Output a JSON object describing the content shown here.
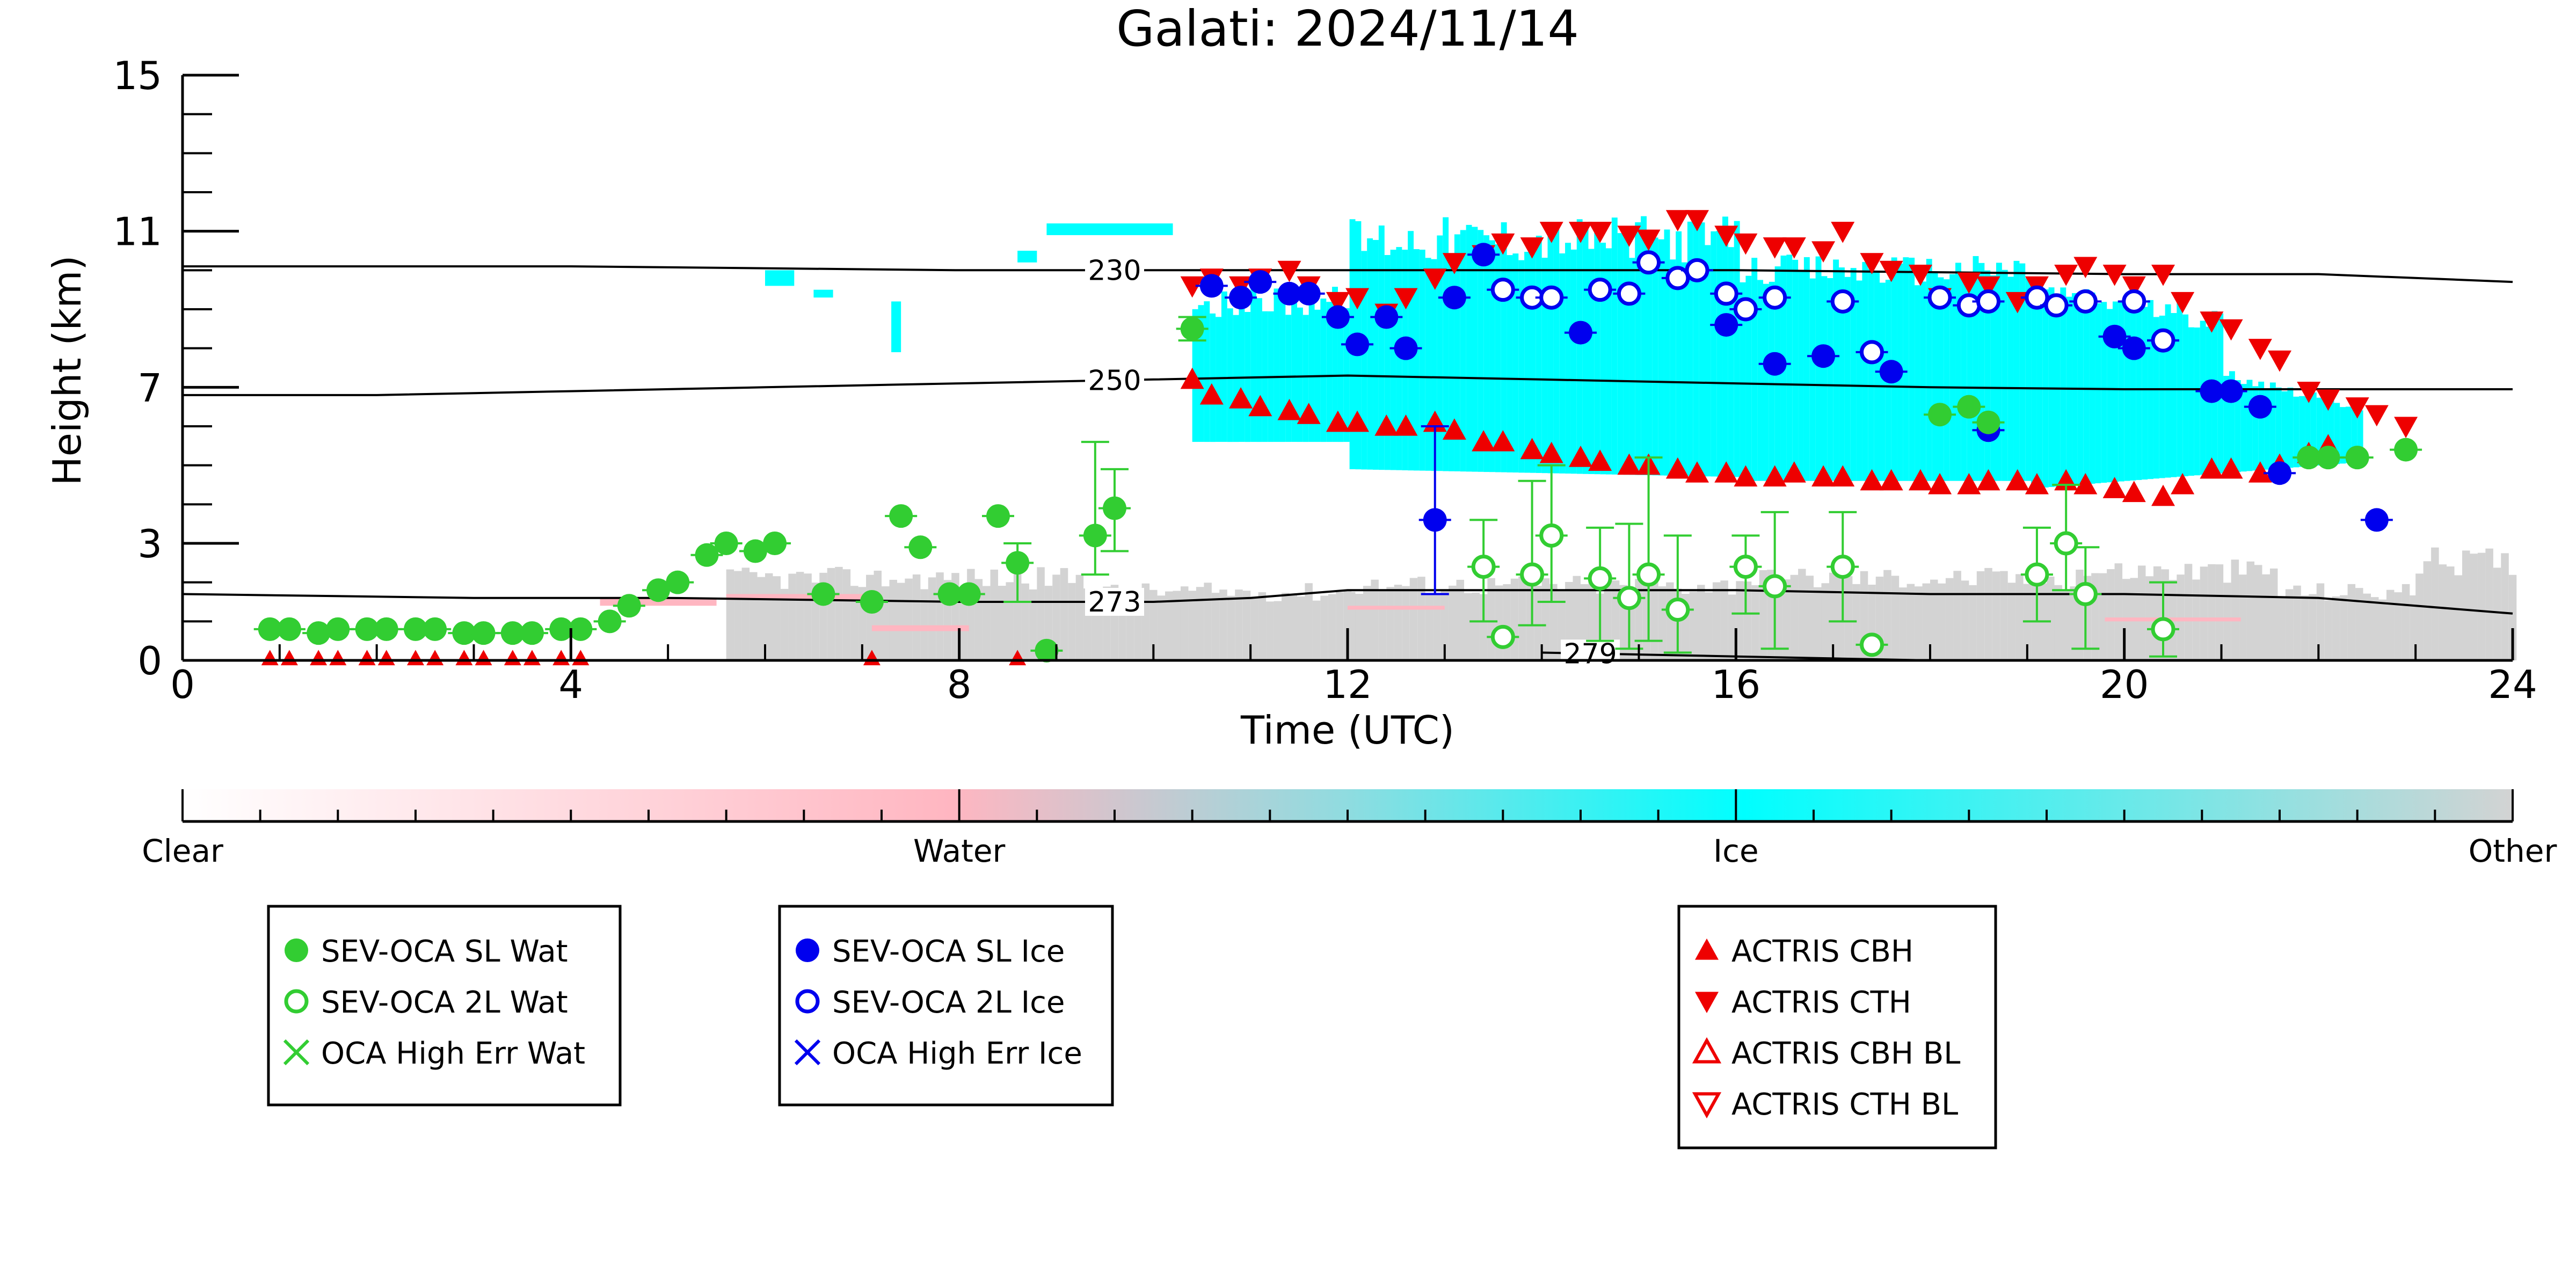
{
  "chart_data": {
    "type": "scatter",
    "title": "Galati: 2024/11/14",
    "xlabel": "Time (UTC)",
    "ylabel": "Height (km)",
    "xlim": [
      0,
      24
    ],
    "ylim": [
      0,
      15
    ],
    "x_ticks": [
      0,
      4,
      8,
      12,
      16,
      20,
      24
    ],
    "y_ticks": [
      0,
      3,
      7,
      11,
      15
    ],
    "grid": false,
    "contours": [
      {
        "label": "230",
        "label_x": 9.6,
        "points": [
          [
            0,
            10.1
          ],
          [
            4,
            10.1
          ],
          [
            8,
            10.0
          ],
          [
            12,
            10.0
          ],
          [
            16,
            10.0
          ],
          [
            20,
            9.9
          ],
          [
            22,
            9.9
          ],
          [
            24,
            9.7
          ]
        ]
      },
      {
        "label": "250",
        "label_x": 9.6,
        "points": [
          [
            0,
            6.8
          ],
          [
            2,
            6.8
          ],
          [
            4,
            6.9
          ],
          [
            6,
            7.0
          ],
          [
            8,
            7.1
          ],
          [
            10,
            7.2
          ],
          [
            12,
            7.3
          ],
          [
            14,
            7.2
          ],
          [
            16,
            7.1
          ],
          [
            18,
            7.0
          ],
          [
            20,
            6.95
          ],
          [
            24,
            6.95
          ]
        ]
      },
      {
        "label": "273",
        "label_x": 9.6,
        "points": [
          [
            0,
            1.7
          ],
          [
            3,
            1.6
          ],
          [
            5,
            1.6
          ],
          [
            8,
            1.5
          ],
          [
            10,
            1.5
          ],
          [
            11,
            1.6
          ],
          [
            12,
            1.8
          ],
          [
            14,
            1.8
          ],
          [
            16,
            1.8
          ],
          [
            18,
            1.7
          ],
          [
            20,
            1.7
          ],
          [
            22,
            1.6
          ],
          [
            24,
            1.2
          ]
        ]
      },
      {
        "label": "279",
        "label_x": 14.5,
        "points": [
          [
            14,
            0.2
          ],
          [
            15,
            0.15
          ],
          [
            16,
            0.1
          ],
          [
            17,
            0.05
          ],
          [
            18,
            0.0
          ]
        ]
      }
    ],
    "colorbar": {
      "labels": [
        "Clear",
        "Water",
        "Ice",
        "Other"
      ],
      "colors": [
        "#ffffff",
        "#ffb6c1",
        "#00ffff",
        "#d3d3d3"
      ]
    },
    "series": [
      {
        "name": "SEV-OCA SL Wat",
        "marker": "filled-circle",
        "color": "#32cd32",
        "points": [
          [
            0.9,
            0.8
          ],
          [
            1.1,
            0.8
          ],
          [
            1.4,
            0.7
          ],
          [
            1.6,
            0.8
          ],
          [
            1.9,
            0.8
          ],
          [
            2.1,
            0.8
          ],
          [
            2.4,
            0.8
          ],
          [
            2.6,
            0.8
          ],
          [
            2.9,
            0.7
          ],
          [
            3.1,
            0.7
          ],
          [
            3.4,
            0.7
          ],
          [
            3.6,
            0.7
          ],
          [
            3.9,
            0.8
          ],
          [
            4.1,
            0.8
          ],
          [
            4.4,
            1.0
          ],
          [
            4.6,
            1.4
          ],
          [
            4.9,
            1.8
          ],
          [
            5.1,
            2.0
          ],
          [
            5.4,
            2.7
          ],
          [
            5.6,
            3.0
          ],
          [
            5.9,
            2.8
          ],
          [
            6.1,
            3.0
          ],
          [
            6.6,
            1.7
          ],
          [
            7.1,
            1.5
          ],
          [
            7.4,
            3.7
          ],
          [
            7.6,
            2.9
          ],
          [
            7.9,
            1.7
          ],
          [
            8.1,
            1.7
          ],
          [
            8.4,
            3.7
          ],
          [
            8.6,
            2.5
          ],
          [
            8.9,
            0.25
          ],
          [
            9.4,
            3.2
          ],
          [
            9.6,
            3.9
          ],
          [
            10.4,
            8.5
          ],
          [
            18.1,
            6.3
          ],
          [
            18.4,
            6.5
          ],
          [
            18.6,
            6.1
          ],
          [
            21.9,
            5.2
          ],
          [
            22.1,
            5.2
          ],
          [
            22.4,
            5.2
          ],
          [
            22.9,
            5.4
          ]
        ],
        "errbars": [
          [
            8.6,
            1.5,
            3.0
          ],
          [
            9.4,
            2.2,
            5.6
          ],
          [
            9.6,
            2.8,
            4.9
          ],
          [
            10.4,
            8.2,
            8.8
          ]
        ]
      },
      {
        "name": "SEV-OCA 2L Wat",
        "marker": "open-circle",
        "color": "#32cd32",
        "points": [
          [
            13.4,
            2.4
          ],
          [
            13.6,
            0.6
          ],
          [
            13.9,
            2.2
          ],
          [
            14.1,
            3.2
          ],
          [
            14.6,
            2.1
          ],
          [
            14.9,
            1.6
          ],
          [
            15.1,
            2.2
          ],
          [
            15.4,
            1.3
          ],
          [
            16.1,
            2.4
          ],
          [
            16.4,
            1.9
          ],
          [
            17.1,
            2.4
          ],
          [
            17.4,
            0.4
          ],
          [
            19.1,
            2.2
          ],
          [
            19.4,
            3.0
          ],
          [
            19.6,
            1.7
          ],
          [
            20.4,
            0.8
          ]
        ],
        "errbars": [
          [
            13.4,
            1.0,
            3.6
          ],
          [
            13.9,
            0.9,
            4.6
          ],
          [
            14.1,
            1.5,
            5.0
          ],
          [
            14.6,
            0.5,
            3.4
          ],
          [
            14.9,
            0.3,
            3.5
          ],
          [
            15.1,
            0.5,
            5.2
          ],
          [
            15.4,
            0.2,
            3.2
          ],
          [
            16.1,
            1.2,
            3.2
          ],
          [
            16.4,
            0.3,
            3.8
          ],
          [
            17.1,
            1.0,
            3.8
          ],
          [
            19.1,
            1.0,
            3.4
          ],
          [
            19.4,
            1.8,
            4.5
          ],
          [
            19.6,
            0.3,
            2.9
          ],
          [
            20.4,
            0.1,
            2.0
          ]
        ]
      },
      {
        "name": "OCA High Err Wat",
        "marker": "x",
        "color": "#32cd32",
        "points": []
      },
      {
        "name": "SEV-OCA SL Ice",
        "marker": "filled-circle",
        "color": "#0000ee",
        "points": [
          [
            10.6,
            9.6
          ],
          [
            10.9,
            9.3
          ],
          [
            11.1,
            9.7
          ],
          [
            11.4,
            9.4
          ],
          [
            11.6,
            9.4
          ],
          [
            11.9,
            8.8
          ],
          [
            12.1,
            8.1
          ],
          [
            12.4,
            8.8
          ],
          [
            12.6,
            8.0
          ],
          [
            12.9,
            3.6
          ],
          [
            13.1,
            9.3
          ],
          [
            13.4,
            10.4
          ],
          [
            14.4,
            8.4
          ],
          [
            15.9,
            8.6
          ],
          [
            16.4,
            7.6
          ],
          [
            16.9,
            7.8
          ],
          [
            17.6,
            7.4
          ],
          [
            18.6,
            5.9
          ],
          [
            19.9,
            8.3
          ],
          [
            20.1,
            8.0
          ],
          [
            20.4,
            8.2
          ],
          [
            20.9,
            6.9
          ],
          [
            21.1,
            6.9
          ],
          [
            21.4,
            6.5
          ],
          [
            21.6,
            4.8
          ],
          [
            22.6,
            3.6
          ]
        ],
        "errbars": [
          [
            12.9,
            1.7,
            6.0
          ]
        ]
      },
      {
        "name": "SEV-OCA 2L Ice",
        "marker": "open-circle",
        "color": "#0000ee",
        "points": [
          [
            13.6,
            9.5
          ],
          [
            13.9,
            9.3
          ],
          [
            14.1,
            9.3
          ],
          [
            14.6,
            9.5
          ],
          [
            14.9,
            9.4
          ],
          [
            15.1,
            10.2
          ],
          [
            15.4,
            9.8
          ],
          [
            15.6,
            10.0
          ],
          [
            15.9,
            9.4
          ],
          [
            16.1,
            9.0
          ],
          [
            16.4,
            9.3
          ],
          [
            17.1,
            9.2
          ],
          [
            17.4,
            7.9
          ],
          [
            18.1,
            9.3
          ],
          [
            18.4,
            9.1
          ],
          [
            18.6,
            9.2
          ],
          [
            19.1,
            9.3
          ],
          [
            19.3,
            9.1
          ],
          [
            19.6,
            9.2
          ],
          [
            20.1,
            9.2
          ],
          [
            20.4,
            8.2
          ]
        ]
      },
      {
        "name": "OCA High Err Ice",
        "marker": "x",
        "color": "#0000ee",
        "points": []
      },
      {
        "name": "ACTRIS CBH",
        "marker": "triangle-up",
        "color": "#ee0000",
        "points": [
          [
            10.4,
            7.2
          ],
          [
            10.6,
            6.8
          ],
          [
            10.9,
            6.7
          ],
          [
            11.1,
            6.5
          ],
          [
            11.4,
            6.4
          ],
          [
            11.6,
            6.3
          ],
          [
            11.9,
            6.1
          ],
          [
            12.1,
            6.1
          ],
          [
            12.4,
            6.0
          ],
          [
            12.6,
            6.0
          ],
          [
            12.9,
            6.1
          ],
          [
            13.1,
            5.9
          ],
          [
            13.4,
            5.6
          ],
          [
            13.6,
            5.6
          ],
          [
            13.9,
            5.4
          ],
          [
            14.1,
            5.3
          ],
          [
            14.4,
            5.2
          ],
          [
            14.6,
            5.1
          ],
          [
            14.9,
            5.0
          ],
          [
            15.1,
            5.0
          ],
          [
            15.4,
            4.9
          ],
          [
            15.6,
            4.8
          ],
          [
            15.9,
            4.8
          ],
          [
            16.1,
            4.7
          ],
          [
            16.4,
            4.7
          ],
          [
            16.6,
            4.8
          ],
          [
            16.9,
            4.7
          ],
          [
            17.1,
            4.7
          ],
          [
            17.4,
            4.6
          ],
          [
            17.6,
            4.6
          ],
          [
            17.9,
            4.6
          ],
          [
            18.1,
            4.5
          ],
          [
            18.4,
            4.5
          ],
          [
            18.6,
            4.6
          ],
          [
            18.9,
            4.6
          ],
          [
            19.1,
            4.5
          ],
          [
            19.4,
            4.6
          ],
          [
            19.6,
            4.5
          ],
          [
            19.9,
            4.4
          ],
          [
            20.1,
            4.3
          ],
          [
            20.4,
            4.2
          ],
          [
            20.6,
            4.5
          ],
          [
            20.9,
            4.9
          ],
          [
            21.1,
            4.9
          ],
          [
            21.4,
            4.8
          ],
          [
            21.6,
            5.0
          ],
          [
            21.9,
            5.3
          ],
          [
            22.1,
            5.5
          ]
        ]
      },
      {
        "name": "ACTRIS CTH",
        "marker": "triangle-down",
        "color": "#ee0000",
        "points": [
          [
            10.4,
            9.6
          ],
          [
            10.6,
            9.8
          ],
          [
            10.9,
            9.6
          ],
          [
            11.1,
            9.8
          ],
          [
            11.4,
            10.0
          ],
          [
            11.6,
            9.6
          ],
          [
            11.9,
            9.2
          ],
          [
            12.1,
            9.3
          ],
          [
            12.4,
            8.9
          ],
          [
            12.6,
            9.3
          ],
          [
            12.9,
            9.8
          ],
          [
            13.1,
            10.2
          ],
          [
            13.4,
            10.4
          ],
          [
            13.6,
            10.7
          ],
          [
            13.9,
            10.6
          ],
          [
            14.1,
            11.0
          ],
          [
            14.4,
            11.0
          ],
          [
            14.6,
            11.0
          ],
          [
            14.9,
            10.9
          ],
          [
            15.1,
            10.8
          ],
          [
            15.4,
            11.3
          ],
          [
            15.6,
            11.3
          ],
          [
            15.9,
            10.9
          ],
          [
            16.1,
            10.7
          ],
          [
            16.4,
            10.6
          ],
          [
            16.6,
            10.6
          ],
          [
            16.9,
            10.5
          ],
          [
            17.1,
            11.0
          ],
          [
            17.4,
            10.2
          ],
          [
            17.6,
            10.0
          ],
          [
            17.9,
            9.9
          ],
          [
            18.1,
            9.3
          ],
          [
            18.4,
            9.7
          ],
          [
            18.6,
            9.6
          ],
          [
            18.9,
            9.2
          ],
          [
            19.1,
            9.6
          ],
          [
            19.4,
            9.9
          ],
          [
            19.6,
            10.1
          ],
          [
            19.9,
            9.9
          ],
          [
            20.1,
            9.6
          ],
          [
            20.4,
            9.9
          ],
          [
            20.6,
            9.2
          ],
          [
            20.9,
            8.7
          ],
          [
            21.1,
            8.5
          ],
          [
            21.4,
            8.0
          ],
          [
            21.6,
            7.7
          ],
          [
            21.9,
            6.9
          ],
          [
            22.1,
            6.7
          ],
          [
            22.4,
            6.5
          ],
          [
            22.6,
            6.3
          ],
          [
            22.9,
            6.0
          ]
        ]
      },
      {
        "name": "ACTRIS CBH BL",
        "marker": "open-triangle-up",
        "color": "#ee0000",
        "points": []
      },
      {
        "name": "ACTRIS CTH BL",
        "marker": "open-triangle-down",
        "color": "#ee0000",
        "points": []
      }
    ],
    "near_ground_red_markers": [
      0.9,
      1.1,
      1.4,
      1.6,
      1.9,
      2.1,
      2.4,
      2.6,
      2.9,
      3.1,
      3.4,
      3.6,
      3.9,
      4.1,
      7.1,
      8.6
    ],
    "legend_groups": [
      [
        "SEV-OCA SL Wat",
        "SEV-OCA 2L Wat",
        "OCA High Err Wat"
      ],
      [
        "SEV-OCA SL Ice",
        "SEV-OCA 2L Ice",
        "OCA High Err Ice"
      ],
      [
        "ACTRIS CBH",
        "ACTRIS CTH",
        "ACTRIS CBH BL",
        "ACTRIS CTH BL"
      ]
    ]
  }
}
